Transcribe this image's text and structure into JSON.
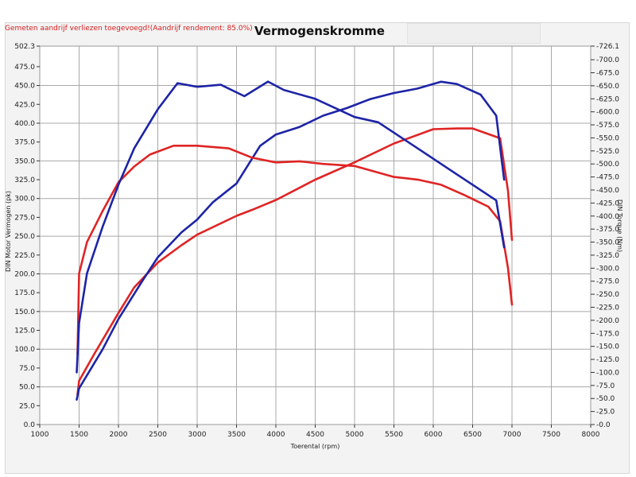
{
  "header": {
    "note": "Gemeten aandrijf verliezen toegevoegd!(Aandrijf rendement: 85.0%)",
    "title": "Vermogenskromme"
  },
  "colors": {
    "power_series": "#df2424",
    "torque_series": "#1d24a6",
    "note_text": "#d61e1e",
    "grid": "#a8a8a8",
    "plot_bg": "#ffffff"
  },
  "chart_data": {
    "type": "line",
    "title": "Vermogenskromme",
    "xlabel": "Toerental (rpm)",
    "ylabel_left": "DIN Motor Vermogen (pk)",
    "ylabel_right": "DIN Torque (Nm)",
    "xlim": [
      1000,
      8000
    ],
    "ylim_left": [
      0,
      502.3
    ],
    "ylim_right": [
      0,
      726.1
    ],
    "grid": true,
    "x_ticks": [
      "1000",
      "1500",
      "2000",
      "2500",
      "3000",
      "3500",
      "4000",
      "4500",
      "5000",
      "5500",
      "6000",
      "6500",
      "7000",
      "7500",
      "8000"
    ],
    "y_left_ticks": [
      "0.0",
      "25.0",
      "50.0",
      "75.0",
      "100.0",
      "125.0",
      "150.0",
      "175.0",
      "200.0",
      "225.0",
      "250.0",
      "275.0",
      "300.0",
      "325.0",
      "350.0",
      "375.0",
      "400.0",
      "425.0",
      "450.0",
      "475.0",
      "502.3"
    ],
    "y_right_ticks": [
      "0.0",
      "25.0",
      "50.0",
      "75.0",
      "100.0",
      "125.0",
      "150.0",
      "175.0",
      "200.0",
      "225.0",
      "250.0",
      "275.0",
      "300.0",
      "325.0",
      "350.0",
      "375.0",
      "400.0",
      "425.0",
      "450.0",
      "475.0",
      "500.0",
      "525.0",
      "550.0",
      "575.0",
      "600.0",
      "625.0",
      "650.0",
      "675.0",
      "700.0",
      "726.1"
    ],
    "series": [
      {
        "axis": "left",
        "color": "#df2424",
        "x": [
          1480,
          1500,
          1700,
          2000,
          2200,
          2500,
          2800,
          3000,
          3500,
          3700,
          4000,
          4500,
          5000,
          5500,
          6000,
          6300,
          6500,
          6850,
          6950,
          7000
        ],
        "y": [
          40,
          58,
          95,
          148,
          182,
          215,
          238,
          252,
          277,
          285,
          298,
          325,
          348,
          373,
          392,
          393,
          393,
          380,
          310,
          245
        ]
      },
      {
        "axis": "left",
        "color": "#1d24a6",
        "x": [
          1470,
          1500,
          1800,
          2000,
          2300,
          2500,
          2800,
          3000,
          3200,
          3500,
          3800,
          4000,
          4300,
          4600,
          4900,
          5200,
          5500,
          5800,
          6100,
          6300,
          6600,
          6800,
          6900
        ],
        "y": [
          33,
          48,
          100,
          140,
          190,
          222,
          255,
          272,
          295,
          320,
          370,
          385,
          395,
          410,
          420,
          432,
          440,
          446,
          455,
          452,
          438,
          410,
          325
        ]
      },
      {
        "axis": "right",
        "color": "#df2424",
        "x": [
          1480,
          1500,
          1600,
          1800,
          2000,
          2200,
          2400,
          2700,
          3000,
          3400,
          3700,
          4000,
          4300,
          4600,
          5000,
          5500,
          5800,
          6100,
          6400,
          6700,
          6850,
          6950,
          7000
        ],
        "y": [
          135,
          290,
          350,
          410,
          465,
          495,
          518,
          535,
          535,
          530,
          512,
          503,
          505,
          500,
          496,
          475,
          470,
          460,
          440,
          418,
          390,
          300,
          230
        ]
      },
      {
        "axis": "right",
        "color": "#1d24a6",
        "x": [
          1470,
          1500,
          1600,
          1800,
          2000,
          2200,
          2500,
          2750,
          3000,
          3300,
          3600,
          3900,
          4100,
          4500,
          5000,
          5300,
          5600,
          5900,
          6200,
          6500,
          6800,
          6900
        ],
        "y": [
          100,
          195,
          290,
          380,
          460,
          530,
          605,
          655,
          648,
          652,
          630,
          658,
          642,
          625,
          590,
          580,
          550,
          520,
          490,
          460,
          430,
          340
        ]
      }
    ]
  }
}
